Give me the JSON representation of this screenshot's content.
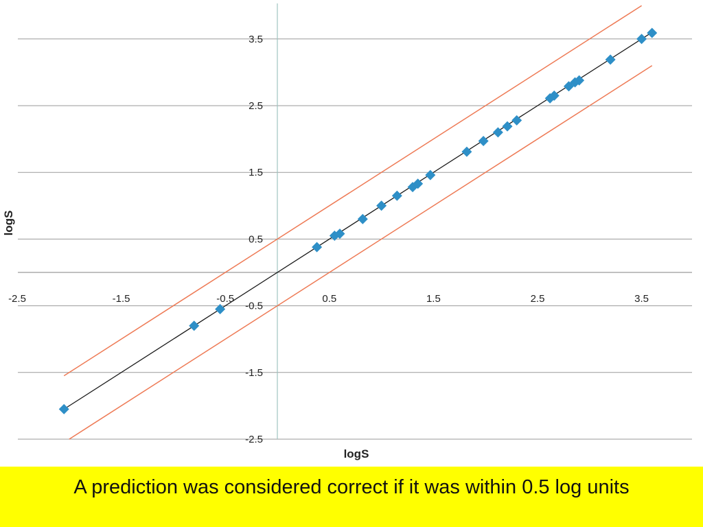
{
  "chart_data": {
    "type": "scatter",
    "xlabel": "logS",
    "ylabel": "logS",
    "xlim": [
      -2.5,
      4.0
    ],
    "ylim": [
      -2.5,
      4.0
    ],
    "x_ticks": [
      "-2.5",
      "-1.5",
      "-0.5",
      "0.5",
      "1.5",
      "2.5",
      "3.5"
    ],
    "y_ticks": [
      "3.5",
      "2.5",
      "1.5",
      "0.5",
      "-0.5",
      "-1.5",
      "-2.5"
    ],
    "x_tick_values": [
      -2.5,
      -1.5,
      -0.5,
      0.5,
      1.5,
      2.5,
      3.5
    ],
    "y_tick_values": [
      3.5,
      2.5,
      1.5,
      0.5,
      -0.5,
      -1.5,
      -2.5
    ],
    "grid": "horizontal",
    "points": [
      {
        "x": -2.05,
        "y": -2.05
      },
      {
        "x": -0.8,
        "y": -0.8
      },
      {
        "x": -0.55,
        "y": -0.55
      },
      {
        "x": 0.38,
        "y": 0.38
      },
      {
        "x": 0.55,
        "y": 0.55
      },
      {
        "x": 0.6,
        "y": 0.58
      },
      {
        "x": 0.82,
        "y": 0.8
      },
      {
        "x": 1.0,
        "y": 1.0
      },
      {
        "x": 1.15,
        "y": 1.15
      },
      {
        "x": 1.3,
        "y": 1.28
      },
      {
        "x": 1.35,
        "y": 1.33
      },
      {
        "x": 1.47,
        "y": 1.46
      },
      {
        "x": 1.82,
        "y": 1.81
      },
      {
        "x": 1.98,
        "y": 1.97
      },
      {
        "x": 2.12,
        "y": 2.1
      },
      {
        "x": 2.21,
        "y": 2.19
      },
      {
        "x": 2.3,
        "y": 2.28
      },
      {
        "x": 2.62,
        "y": 2.61
      },
      {
        "x": 2.66,
        "y": 2.65
      },
      {
        "x": 2.8,
        "y": 2.79
      },
      {
        "x": 2.86,
        "y": 2.85
      },
      {
        "x": 2.9,
        "y": 2.88
      },
      {
        "x": 3.2,
        "y": 3.19
      },
      {
        "x": 3.5,
        "y": 3.5
      },
      {
        "x": 3.6,
        "y": 3.59
      }
    ],
    "lines": [
      {
        "role": "fit",
        "color": "#1a1a1a",
        "x": [
          -2.05,
          3.6
        ],
        "y": [
          -2.05,
          3.6
        ]
      },
      {
        "role": "upper-bound",
        "color": "#ee7a55",
        "x": [
          -2.05,
          3.5
        ],
        "y": [
          -1.55,
          4.0
        ]
      },
      {
        "role": "lower-bound",
        "color": "#ee7a55",
        "x": [
          -2.0,
          3.6
        ],
        "y": [
          -2.5,
          3.1
        ]
      }
    ],
    "marker_color": "#2e8fc7"
  },
  "caption": {
    "text": "A prediction was considered correct if it was within 0.5 log units",
    "background": "#ffff00"
  }
}
